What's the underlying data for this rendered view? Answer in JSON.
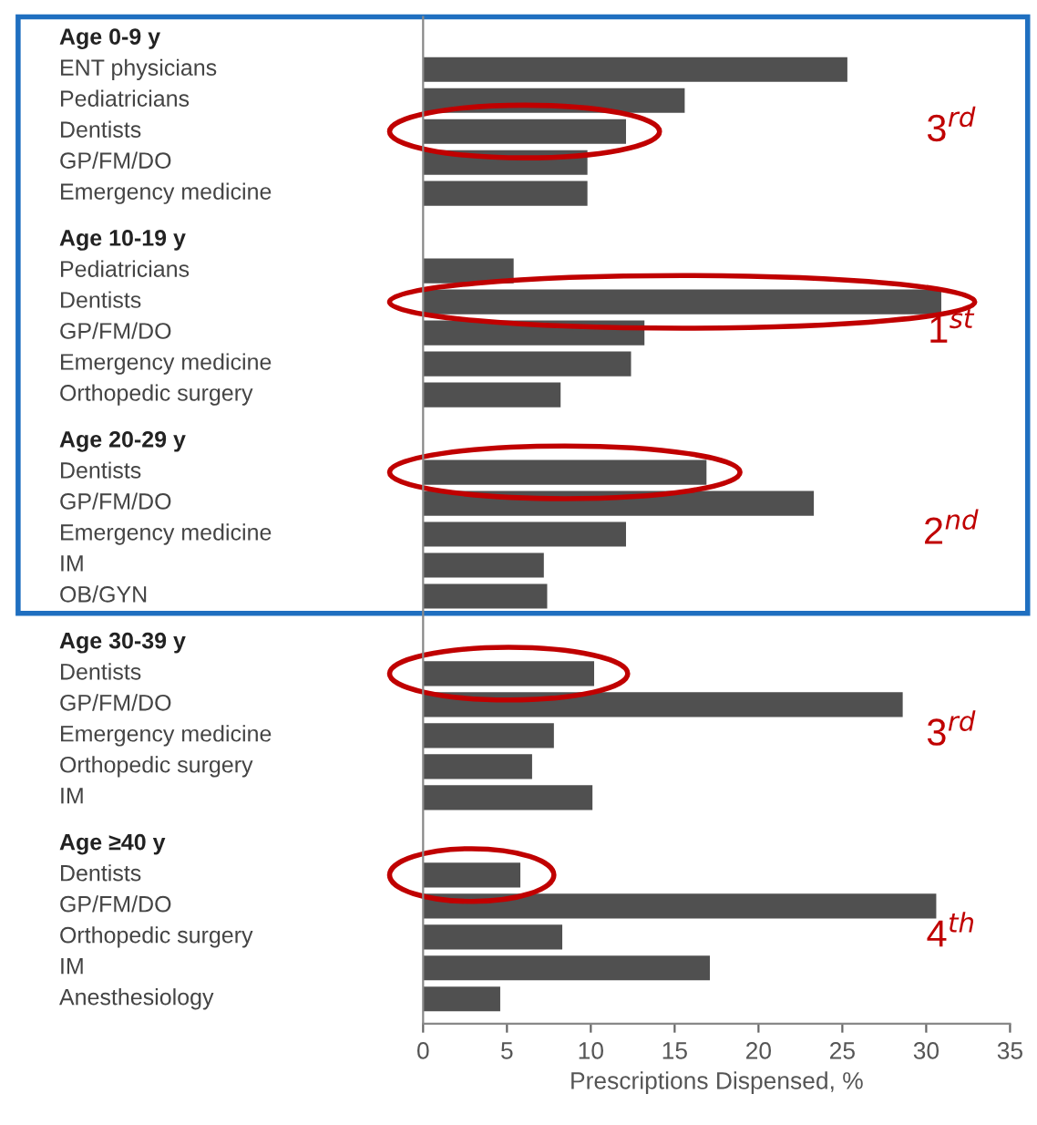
{
  "chart_data": {
    "type": "bar",
    "orientation": "horizontal",
    "xlabel": "Prescriptions Dispensed, %",
    "categories": [
      "Age 0-9 y",
      "ENT physicians",
      "Pediatricians",
      "Dentists",
      "GP/FM/DO",
      "Emergency medicine",
      "Age 10-19 y",
      "Pediatricians",
      "Dentists",
      "GP/FM/DO",
      "Emergency medicine",
      "Orthopedic surgery",
      "Age 20-29 y",
      "Dentists",
      "GP/FM/DO",
      "Emergency medicine",
      "IM",
      "OB/GYN",
      "Age 30-39 y",
      "Dentists",
      "GP/FM/DO",
      "Emergency medicine",
      "Orthopedic surgery",
      "IM",
      "Age ≥40 y",
      "Dentists",
      "GP/FM/DO",
      "Orthopedic surgery",
      "IM",
      "Anesthesiology"
    ],
    "values": [
      null,
      25.3,
      15.6,
      12.1,
      9.8,
      9.8,
      null,
      5.4,
      30.9,
      13.2,
      12.4,
      8.2,
      null,
      16.9,
      23.3,
      12.1,
      7.2,
      7.4,
      null,
      10.2,
      28.6,
      7.8,
      6.5,
      10.1,
      null,
      5.8,
      30.6,
      8.3,
      17.1,
      4.6
    ],
    "color": "#505050",
    "xlim": [
      0,
      35
    ],
    "xticks": [
      0,
      5,
      10,
      15,
      20,
      25,
      30,
      35
    ],
    "grid": false,
    "annotations": [
      "3$^{rd}$",
      "1$^{st}$",
      "2$^{nd}$",
      "3$^{rd}$",
      "4$^{th}$"
    ]
  }
}
